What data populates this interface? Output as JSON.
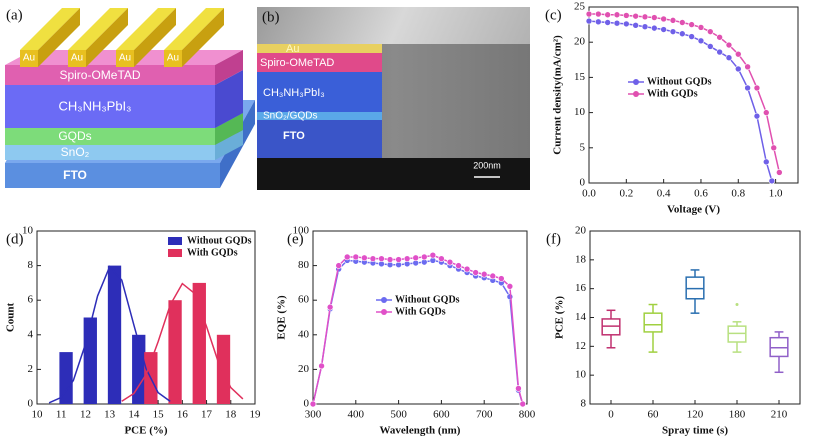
{
  "panels": {
    "a": {
      "label": "(a)",
      "electrodes": [
        "Au",
        "Au",
        "Au",
        "Au"
      ],
      "layers": [
        "Spiro-OMeTAD",
        "CH₃NH₃PbI₃",
        "GQDs",
        "SnO₂",
        "FTO"
      ]
    },
    "b": {
      "label": "(b)",
      "layers": [
        "Au",
        "Spiro-OMeTAD",
        "CH₃NH₃PbI₃",
        "SnO₂/GQDs",
        "FTO"
      ],
      "scale_bar": "200nm"
    }
  },
  "chart_data": [
    {
      "type": "line",
      "label": "(c)",
      "x_label": "Voltage (V)",
      "y_label": "Current density(mA/cm²)",
      "xlim": [
        0,
        1.12
      ],
      "ylim": [
        0,
        25
      ],
      "xticks": [
        {
          "value": 0,
          "label": "0.0"
        },
        {
          "value": 0.2,
          "label": "0.2"
        },
        {
          "value": 0.4,
          "label": "0.4"
        },
        {
          "value": 0.6,
          "label": "0.6"
        },
        {
          "value": 0.8,
          "label": "0.8"
        },
        {
          "value": 1.0,
          "label": "1.0"
        }
      ],
      "yticks": [
        0,
        5,
        10,
        15,
        20,
        25
      ],
      "series": [
        {
          "name": "Without GQDs",
          "color": "#6f60e8",
          "x": [
            0,
            0.05,
            0.1,
            0.15,
            0.2,
            0.25,
            0.3,
            0.35,
            0.4,
            0.45,
            0.5,
            0.55,
            0.6,
            0.65,
            0.7,
            0.75,
            0.8,
            0.85,
            0.9,
            0.95,
            0.98
          ],
          "values": [
            23.0,
            22.9,
            22.8,
            22.7,
            22.6,
            22.4,
            22.2,
            22.0,
            21.8,
            21.5,
            21.2,
            20.8,
            20.2,
            19.4,
            18.6,
            17.8,
            16.2,
            13.5,
            9.5,
            3.0,
            0.3
          ]
        },
        {
          "name": "With GQDs",
          "color": "#e050b0",
          "x": [
            0,
            0.05,
            0.1,
            0.15,
            0.2,
            0.25,
            0.3,
            0.35,
            0.4,
            0.45,
            0.5,
            0.55,
            0.6,
            0.65,
            0.7,
            0.75,
            0.8,
            0.85,
            0.9,
            0.95,
            0.99,
            1.02
          ],
          "values": [
            24.0,
            24.0,
            23.9,
            23.9,
            23.8,
            23.7,
            23.6,
            23.5,
            23.3,
            23.1,
            22.8,
            22.5,
            22.1,
            21.5,
            20.7,
            19.6,
            18.3,
            16.5,
            13.5,
            10.0,
            5.0,
            1.5
          ]
        }
      ]
    },
    {
      "type": "histogram",
      "label": "(d)",
      "x_label": "PCE (%)",
      "y_label": "Count",
      "xlim": [
        10,
        19
      ],
      "ylim": [
        0,
        10
      ],
      "xticks": [
        10,
        11,
        12,
        13,
        14,
        15,
        16,
        17,
        18,
        19
      ],
      "yticks": [
        0,
        2,
        4,
        6,
        8,
        10
      ],
      "series": [
        {
          "name": "Without GQDs",
          "color": "#2d2db8",
          "x": [
            11.2,
            12.2,
            13.2,
            14.2
          ],
          "values": [
            3,
            5,
            8,
            4
          ]
        },
        {
          "name": "With GQDs",
          "color": "#e0305c",
          "x": [
            14.7,
            15.7,
            16.7,
            17.7
          ],
          "values": [
            3,
            6,
            7,
            4
          ]
        }
      ],
      "fits": [
        {
          "color": "#2d2db8",
          "x": [
            10.5,
            11,
            11.5,
            12,
            12.5,
            13,
            13.5,
            14,
            14.5,
            15,
            15.5
          ],
          "values": [
            0.07,
            0.38,
            1.36,
            3.46,
            6.24,
            7.94,
            7.16,
            4.56,
            2.05,
            0.66,
            0.15
          ]
        },
        {
          "color": "#e0305c",
          "x": [
            13.5,
            14,
            14.5,
            15,
            15.5,
            16,
            16.5,
            17,
            17.5,
            18,
            18.5
          ],
          "values": [
            0.16,
            0.61,
            1.69,
            3.6,
            5.73,
            6.96,
            6.4,
            4.47,
            2.36,
            0.95,
            0.29
          ]
        }
      ]
    },
    {
      "type": "line",
      "label": "(e)",
      "x_label": "Wavelength (nm)",
      "y_label": "EQE (%)",
      "xlim": [
        300,
        800
      ],
      "ylim": [
        0,
        100
      ],
      "xticks": [
        300,
        400,
        500,
        600,
        700,
        800
      ],
      "yticks": [
        0,
        20,
        40,
        60,
        80,
        100
      ],
      "series": [
        {
          "name": "Without GQDs",
          "color": "#6b6bf0",
          "x": [
            300,
            320,
            340,
            360,
            380,
            400,
            420,
            440,
            460,
            480,
            500,
            520,
            540,
            560,
            580,
            600,
            620,
            640,
            660,
            680,
            700,
            720,
            740,
            760,
            780,
            790
          ],
          "values": [
            0,
            22,
            55,
            78,
            83,
            82.5,
            82,
            81.5,
            81,
            80.5,
            80.5,
            81,
            81.5,
            82,
            83,
            82,
            80,
            78,
            76,
            74,
            73,
            71.5,
            70,
            62,
            8,
            0
          ]
        },
        {
          "name": "With GQDs",
          "color": "#e050c8",
          "x": [
            300,
            320,
            340,
            360,
            380,
            400,
            420,
            440,
            460,
            480,
            500,
            520,
            540,
            560,
            580,
            600,
            620,
            640,
            660,
            680,
            700,
            720,
            740,
            760,
            780,
            790
          ],
          "values": [
            0,
            22,
            56,
            80,
            85,
            85,
            84.5,
            84,
            84,
            83.5,
            83.5,
            84,
            84.5,
            85,
            86,
            84,
            82,
            80,
            78,
            76,
            75,
            74,
            72.5,
            68,
            9,
            0
          ]
        }
      ]
    },
    {
      "type": "box",
      "label": "(f)",
      "x_label": "Spray time (s)",
      "y_label": "PCE (%)",
      "ylim": [
        8,
        20
      ],
      "yticks": [
        8,
        10,
        12,
        14,
        16,
        18,
        20
      ],
      "categories": [
        "0",
        "60",
        "120",
        "180",
        "210"
      ],
      "boxes": [
        {
          "color": "#c0306f",
          "min": 11.9,
          "q1": 12.8,
          "median": 13.4,
          "q3": 13.9,
          "max": 14.5
        },
        {
          "color": "#a0d040",
          "min": 11.6,
          "q1": 13.0,
          "median": 13.5,
          "q3": 14.3,
          "max": 14.9
        },
        {
          "color": "#2a6fb0",
          "min": 14.3,
          "q1": 15.3,
          "median": 16.0,
          "q3": 16.8,
          "max": 17.3
        },
        {
          "color": "#b8e080",
          "min": 11.6,
          "q1": 12.3,
          "median": 12.9,
          "q3": 13.4,
          "max": 13.7,
          "outliers": [
            14.9
          ]
        },
        {
          "color": "#9060c8",
          "min": 10.2,
          "q1": 11.3,
          "median": 11.9,
          "q3": 12.6,
          "max": 13.0
        }
      ]
    }
  ]
}
